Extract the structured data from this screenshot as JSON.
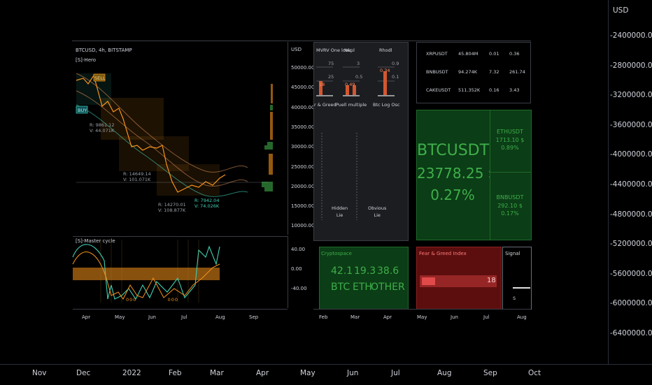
{
  "outer": {
    "price_unit": "USD",
    "price_ticks": [
      "-2400000.00",
      "-2800000.00",
      "-3200000.00",
      "-3600000.00",
      "-4000000.00",
      "-4400000.00",
      "-4800000.00",
      "-5200000.00",
      "-5600000.00",
      "-6000000.00",
      "-6400000.00"
    ],
    "time_ticks": [
      "Nov",
      "Dec",
      "2022",
      "Feb",
      "Mar",
      "Apr",
      "May",
      "Jun",
      "Jul",
      "Aug",
      "Sep",
      "Oct"
    ]
  },
  "main_chart": {
    "symbol": "BTCUSD, 4h, BITSTAMP",
    "indicator": "[S]-Hero",
    "price_unit": "USD",
    "price_ticks": [
      "50000.00",
      "45000.00",
      "40000.00",
      "35000.00",
      "30000.00",
      "25000.00",
      "20000.00",
      "15000.00",
      "10000.00"
    ],
    "sell_label": "SELL",
    "buy_label": "BUY",
    "annotations": [
      {
        "line1": "R: 9861.12",
        "line2": "V: 44.071K"
      },
      {
        "line1": "R: 14649.14",
        "line2": "V: 101.071K"
      },
      {
        "line1": "R: 14270.01",
        "line2": "V: 108.877K"
      },
      {
        "line1": "R: 7942.04",
        "line2": "V: 74.026K"
      }
    ]
  },
  "cycle_chart": {
    "indicator": "[S]-Master cycle",
    "ticks": [
      "40.00",
      "0.00",
      "-40.00"
    ],
    "markers": [
      "0",
      "0",
      "0",
      "0",
      "0",
      "0"
    ]
  },
  "main_time_ticks": [
    "Apr",
    "May",
    "Jun",
    "Jul",
    "Aug",
    "Sep"
  ],
  "onchain": {
    "columns": [
      {
        "header": "MVRV One look",
        "v_top": "75",
        "v_mid": "25",
        "v_bar": "18",
        "label": "r & Greed"
      },
      {
        "header": "Nupl",
        "v_top": "3",
        "v_mid": "0.5",
        "v_bar": "0.49",
        "label": "Puell multiple"
      },
      {
        "header": "Rhodl",
        "v_top": "0.9",
        "v_mid": "0.1",
        "v_bar": "0.34",
        "label": "Btc Log Osc"
      }
    ],
    "hidden_lie": [
      "Hidden",
      "Lie"
    ],
    "obvious_lie": [
      "Obvious",
      "Lie"
    ]
  },
  "ticker_table": {
    "rows": [
      {
        "symbol": "XRPUSDT",
        "volume": "45.804M",
        "change": "0.01",
        "price": "0.36"
      },
      {
        "symbol": "BNBUSDT",
        "volume": "94.274K",
        "change": "7.32",
        "price": "261.74"
      },
      {
        "symbol": "CAKEUSDT",
        "volume": "511.352K",
        "change": "0.16",
        "price": "3.43"
      }
    ]
  },
  "heatmap": {
    "main_symbol": "BTCUSDT",
    "main_price": "23778.25 $",
    "main_change": "0.27%",
    "tiles": [
      {
        "symbol": "ETHUSDT",
        "price": "1713.10 $",
        "change": "0.89%"
      },
      {
        "symbol": "BNBUSDT",
        "price": "292.10 $",
        "change": "0.17%"
      }
    ]
  },
  "cryptospace": {
    "title": "Cryptospace",
    "values": [
      "42.1",
      "19.3",
      "38.6"
    ],
    "labels": [
      "BTC",
      "ETH",
      "OTHER"
    ]
  },
  "fear_greed": {
    "title": "Fear & Greed Index",
    "value": "18",
    "level": 0.18
  },
  "signal": {
    "title": "Signal",
    "value": "S"
  },
  "right_time_ticks": [
    "Feb",
    "Mar",
    "Apr",
    "May",
    "Jun",
    "Jul",
    "Aug"
  ],
  "colors": {
    "background": "#000000",
    "orange": "#f7931a",
    "teal": "#3fd1b3",
    "green_panel": "#0b3d16",
    "green_text": "#3fae4a",
    "red_panel": "#5c0e0e",
    "red_bar": "#d43b3b"
  }
}
